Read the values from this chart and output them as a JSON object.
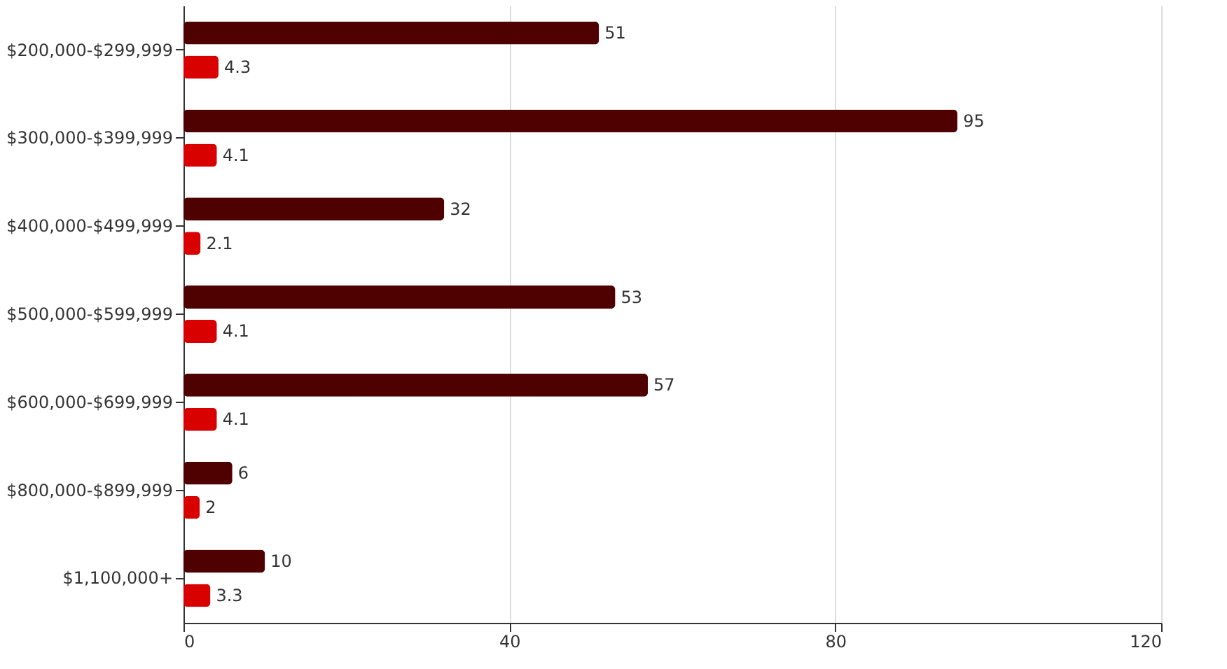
{
  "chart_data": {
    "type": "bar",
    "orientation": "horizontal",
    "categories": [
      "$200,000-$299,999",
      "$300,000-$399,999",
      "$400,000-$499,999",
      "$500,000-$599,999",
      "$600,000-$699,999",
      "$800,000-$899,999",
      "$1,100,000+"
    ],
    "series": [
      {
        "color": "#4f0000",
        "values": [
          51,
          95,
          32,
          53,
          57,
          6,
          10
        ]
      },
      {
        "color": "#d90000",
        "values": [
          4.3,
          4.1,
          2.1,
          4.1,
          4.1,
          2,
          3.3
        ]
      }
    ],
    "xlim": [
      0,
      120
    ],
    "xticks": [
      0,
      40,
      80,
      120
    ],
    "grid": "x",
    "data_labels": true,
    "legend": false
  }
}
